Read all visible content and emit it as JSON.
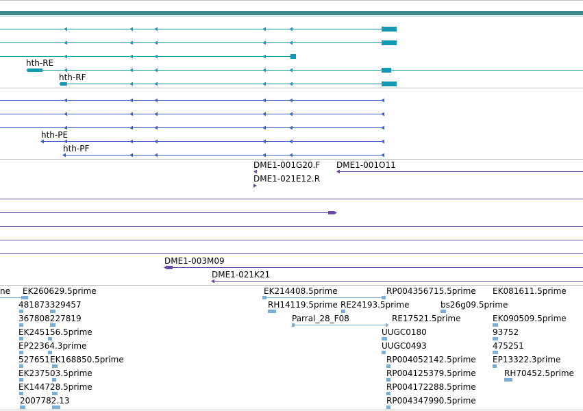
{
  "colors": {
    "gene": "#1499b4",
    "gene_bar": "#3a8a8c",
    "protein": "#3b63c4",
    "clone": "#6b48a6",
    "est": "#7aaed8",
    "divider": "#c0c0c0"
  },
  "transcripts": {
    "labels": [
      "hth-RE",
      "hth-RF"
    ]
  },
  "proteins": {
    "labels": [
      "hth-PE",
      "hth-PF"
    ]
  },
  "clones": {
    "labels": [
      "DME1-001G20.F",
      "DME1-001O11",
      "DME1-021E12.R",
      "DME1-003M09",
      "DME1-021K21"
    ]
  },
  "ests": {
    "labels": [
      "ne",
      "EK260629.5prime",
      "481873329457",
      "367808227819",
      "EK245156.5prime",
      "EP22364.3prime",
      "527651",
      "EK168850.5prime",
      "EK237503.5prime",
      "EK144728.5prime",
      "2007782.13",
      "EK214408.5prime",
      "RH14119.5prime",
      "RE24193.5prime",
      "Parral_28_F08",
      "RP004356715.5prime",
      "RE17521.5prime",
      "UUGC0180",
      "UUGC0493",
      "RP004052142.5prime",
      "RP004125379.5prime",
      "RP004172288.5prime",
      "RP004347990.5prime",
      "bs26g09.5prime",
      "EK081611.5prime",
      "EK090509.5prime",
      "93752",
      "475251",
      "EP13322.3prime",
      "RH70452.5prime"
    ]
  }
}
